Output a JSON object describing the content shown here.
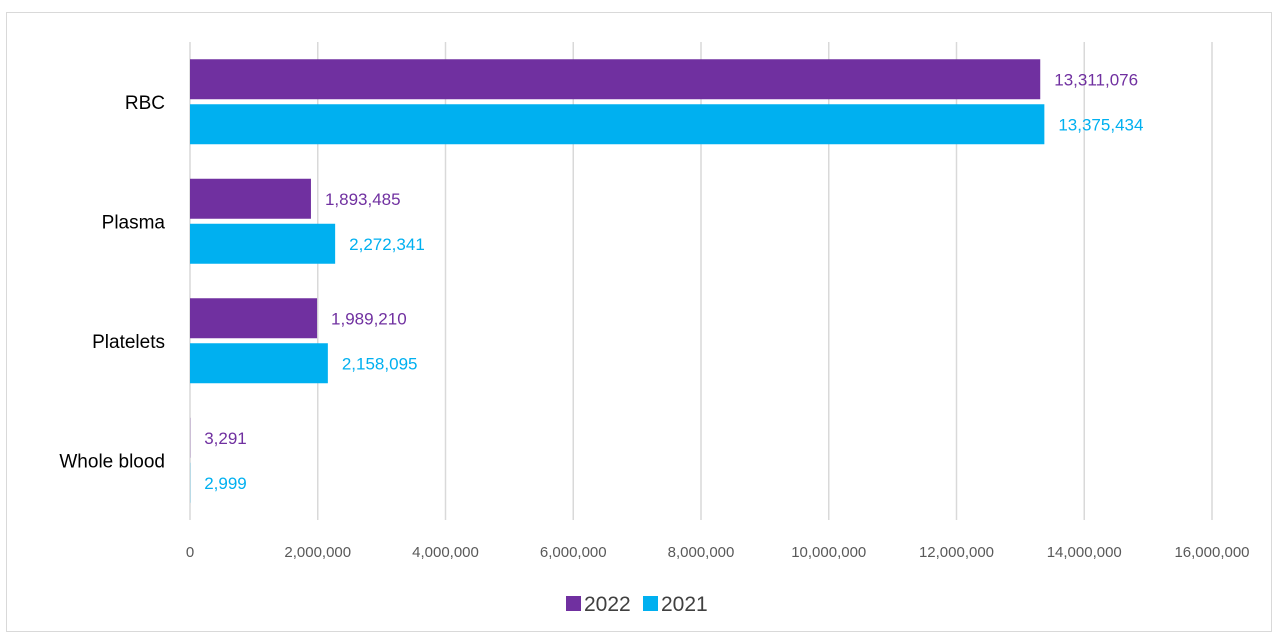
{
  "chart_data": {
    "type": "bar",
    "orientation": "horizontal",
    "categories": [
      "RBC",
      "Plasma",
      "Platelets",
      "Whole blood"
    ],
    "series": [
      {
        "name": "2022",
        "color": "#7030a0",
        "values": [
          13311076,
          1893485,
          1989210,
          3291
        ],
        "labels": [
          "13,311,076",
          "1,893,485",
          "1,989,210",
          "3,291"
        ]
      },
      {
        "name": "2021",
        "color": "#00b0f0",
        "values": [
          13375434,
          2272341,
          2158095,
          2999
        ],
        "labels": [
          "13,375,434",
          "2,272,341",
          "2,158,095",
          "2,999"
        ]
      }
    ],
    "xlim": [
      0,
      16000000
    ],
    "xticks": [
      0,
      2000000,
      4000000,
      6000000,
      8000000,
      10000000,
      12000000,
      14000000,
      16000000
    ],
    "xtick_labels": [
      "0",
      "2,000,000",
      "4,000,000",
      "6,000,000",
      "8,000,000",
      "10,000,000",
      "12,000,000",
      "14,000,000",
      "16,000,000"
    ],
    "grid": "vertical",
    "legend_position": "bottom"
  }
}
